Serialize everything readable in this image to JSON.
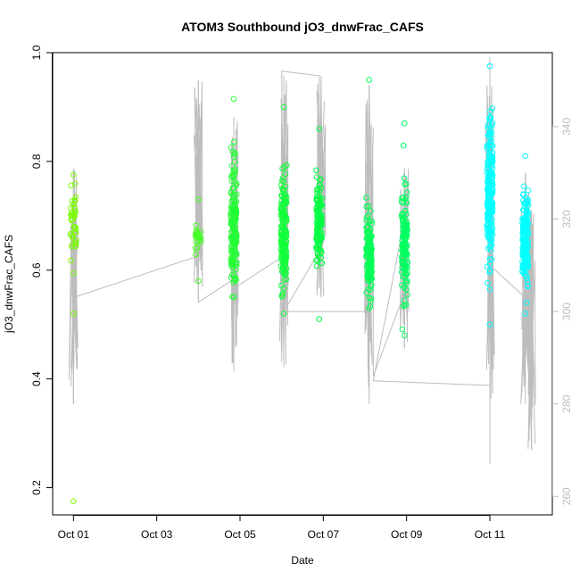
{
  "chart_data": {
    "type": "scatter",
    "title": "ATOM3 Southbound jO3_dnwFrac_CAFS",
    "xlabel": "Date",
    "ylabel": "jO3_dnwFrac_CAFS",
    "x_ticks": [
      "Oct 01",
      "Oct 03",
      "Oct 05",
      "Oct 07",
      "Oct 09",
      "Oct 11"
    ],
    "x_tick_days": [
      1,
      3,
      5,
      7,
      9,
      11
    ],
    "xlim_days": [
      0.5,
      12.5
    ],
    "y_ticks": [
      0.2,
      0.4,
      0.6,
      0.8,
      1.0
    ],
    "ylim": [
      0.15,
      1.0
    ],
    "y2_ticks": [
      260,
      280,
      300,
      320,
      340
    ],
    "y2lim": [
      256,
      356
    ],
    "grid": false,
    "colors": {
      "latitude_green_yellow": "#7cfc00",
      "latitude_green": "#00ff40",
      "latitude_cyan": "#00ffff",
      "overlay_line": "#bdbdbd",
      "frame": "#000000"
    },
    "point_clusters": [
      {
        "day": 1.0,
        "center": 0.69,
        "spread": 0.06,
        "min": 0.52,
        "max": 0.775,
        "count": 45,
        "color": "#7cfc00"
      },
      {
        "day": 1.0,
        "center": 0.175,
        "spread": 0.0,
        "min": 0.175,
        "max": 0.175,
        "count": 1,
        "color": "#7cfc00"
      },
      {
        "day": 4.0,
        "center": 0.66,
        "spread": 0.03,
        "min": 0.58,
        "max": 0.73,
        "count": 25,
        "color": "#44ff22"
      },
      {
        "day": 4.85,
        "center": 0.68,
        "spread": 0.1,
        "min": 0.55,
        "max": 0.915,
        "count": 160,
        "color": "#22ff33"
      },
      {
        "day": 6.05,
        "center": 0.66,
        "spread": 0.09,
        "min": 0.52,
        "max": 0.9,
        "count": 170,
        "color": "#11ff3a"
      },
      {
        "day": 6.9,
        "center": 0.69,
        "spread": 0.07,
        "min": 0.51,
        "max": 0.86,
        "count": 120,
        "color": "#00ff40"
      },
      {
        "day": 8.1,
        "center": 0.63,
        "spread": 0.07,
        "min": 0.53,
        "max": 0.95,
        "count": 130,
        "color": "#00ff55"
      },
      {
        "day": 8.95,
        "center": 0.65,
        "spread": 0.09,
        "min": 0.48,
        "max": 0.87,
        "count": 140,
        "color": "#00ff60"
      },
      {
        "day": 11.0,
        "center": 0.75,
        "spread": 0.12,
        "min": 0.5,
        "max": 0.975,
        "count": 220,
        "color": "#00ffff"
      },
      {
        "day": 11.85,
        "center": 0.66,
        "spread": 0.07,
        "min": 0.52,
        "max": 0.81,
        "count": 160,
        "color": "#00ffff"
      }
    ],
    "overlay_series": {
      "name": "",
      "axis": "right",
      "path": [
        [
          1.0,
          303
        ],
        [
          1.0,
          280
        ],
        [
          1.0,
          330
        ],
        [
          1.0,
          303
        ],
        [
          4.0,
          312
        ],
        [
          4.0,
          350
        ],
        [
          4.0,
          316
        ],
        [
          4.0,
          322
        ],
        [
          4.0,
          302
        ],
        [
          4.85,
          307
        ],
        [
          4.85,
          288
        ],
        [
          4.85,
          340
        ],
        [
          4.85,
          305
        ],
        [
          6.05,
          312
        ],
        [
          6.05,
          351
        ],
        [
          6.05,
          300
        ],
        [
          6.0,
          352
        ],
        [
          6.9,
          351
        ],
        [
          6.9,
          305
        ],
        [
          6.9,
          347
        ],
        [
          6.9,
          313
        ],
        [
          6.05,
          300
        ],
        [
          8.1,
          300
        ],
        [
          8.1,
          280
        ],
        [
          8.1,
          349
        ],
        [
          8.2,
          304
        ],
        [
          8.2,
          286
        ],
        [
          8.95,
          304
        ],
        [
          8.95,
          292
        ],
        [
          8.95,
          320
        ],
        [
          8.2,
          285
        ],
        [
          11.0,
          284
        ],
        [
          11.0,
          268
        ],
        [
          11.0,
          354
        ],
        [
          11.0,
          310
        ],
        [
          11.85,
          303
        ],
        [
          11.85,
          284
        ],
        [
          11.85,
          330
        ],
        [
          12.0,
          270
        ],
        [
          12.0,
          320
        ]
      ],
      "vertical_traces": [
        {
          "day": 1.0,
          "min": 280,
          "max": 331
        },
        {
          "day": 4.0,
          "min": 302,
          "max": 350
        },
        {
          "day": 4.85,
          "min": 287,
          "max": 342
        },
        {
          "day": 6.05,
          "min": 288,
          "max": 351
        },
        {
          "day": 6.95,
          "min": 303,
          "max": 351
        },
        {
          "day": 8.1,
          "min": 282,
          "max": 349
        },
        {
          "day": 8.95,
          "min": 292,
          "max": 331
        },
        {
          "day": 11.0,
          "min": 267,
          "max": 355
        },
        {
          "day": 11.85,
          "min": 280,
          "max": 330
        },
        {
          "day": 12.0,
          "min": 270,
          "max": 322
        }
      ]
    }
  }
}
